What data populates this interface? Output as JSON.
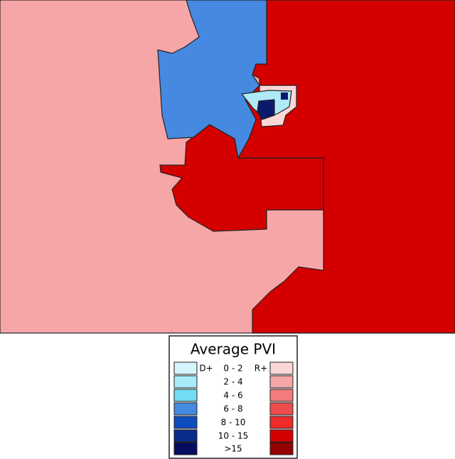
{
  "legend": {
    "title": "Average PVI",
    "left_label": "D+",
    "right_label": "R+",
    "ranges": [
      "0 - 2",
      "2 - 4",
      "4 - 6",
      "6 - 8",
      "8 - 10",
      "10 - 15",
      ">15"
    ]
  }
}
